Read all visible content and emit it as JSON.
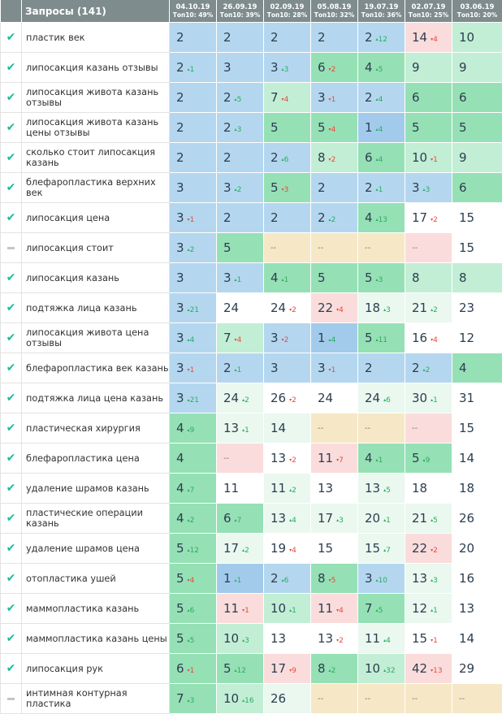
{
  "header": {
    "queries_label": "Запросы (141)",
    "dates": [
      {
        "date": "04.10.19",
        "top": "Топ10: 49%"
      },
      {
        "date": "26.09.19",
        "top": "Топ10: 39%"
      },
      {
        "date": "02.09.19",
        "top": "Топ10: 28%"
      },
      {
        "date": "05.08.19",
        "top": "Топ10: 32%"
      },
      {
        "date": "19.07.19",
        "top": "Топ10: 36%"
      },
      {
        "date": "02.07.19",
        "top": "Топ10: 25%"
      },
      {
        "date": "03.06.19",
        "top": "Топ10: 20%"
      }
    ]
  },
  "colors": {
    "blue": "#b4d7ef",
    "blue2": "#a2cbeb",
    "green": "#96e0b5",
    "lightgreen": "#c2eed5",
    "palegreen": "#eaf8ef",
    "white": "#ffffff",
    "pink": "#fbdcdc",
    "beige": "#f6e8c6",
    "up": "#27ae60",
    "down": "#e74c3c",
    "check": "#1abc9c"
  },
  "rows": [
    {
      "status": "check",
      "keyword": "пластик век",
      "cells": [
        [
          "2",
          0,
          "blue"
        ],
        [
          "2",
          0,
          "blue"
        ],
        [
          "2",
          0,
          "blue"
        ],
        [
          "2",
          0,
          "blue"
        ],
        [
          "2",
          12,
          "blue"
        ],
        [
          "14",
          -4,
          "pink"
        ],
        [
          "10",
          0,
          "lightgreen"
        ]
      ]
    },
    {
      "status": "check",
      "keyword": "липосакция казань отзывы",
      "cells": [
        [
          "2",
          1,
          "blue"
        ],
        [
          "3",
          0,
          "blue"
        ],
        [
          "3",
          3,
          "blue"
        ],
        [
          "6",
          -2,
          "green"
        ],
        [
          "4",
          5,
          "green"
        ],
        [
          "9",
          0,
          "lightgreen"
        ],
        [
          "9",
          0,
          "lightgreen"
        ]
      ]
    },
    {
      "status": "check",
      "keyword": "липосакция живота казань отзывы",
      "cells": [
        [
          "2",
          0,
          "blue"
        ],
        [
          "2",
          5,
          "blue"
        ],
        [
          "7",
          -4,
          "lightgreen"
        ],
        [
          "3",
          -1,
          "blue"
        ],
        [
          "2",
          4,
          "blue"
        ],
        [
          "6",
          0,
          "green"
        ],
        [
          "6",
          0,
          "green"
        ]
      ]
    },
    {
      "status": "check",
      "keyword": "липосакция живота казань цены отзывы",
      "cells": [
        [
          "2",
          0,
          "blue"
        ],
        [
          "2",
          3,
          "blue"
        ],
        [
          "5",
          0,
          "green"
        ],
        [
          "5",
          -4,
          "green"
        ],
        [
          "1",
          4,
          "blue2"
        ],
        [
          "5",
          0,
          "green"
        ],
        [
          "5",
          0,
          "green"
        ]
      ]
    },
    {
      "status": "check",
      "keyword": "сколько стоит липосакция казань",
      "cells": [
        [
          "2",
          0,
          "blue"
        ],
        [
          "2",
          0,
          "blue"
        ],
        [
          "2",
          6,
          "blue"
        ],
        [
          "8",
          -2,
          "lightgreen"
        ],
        [
          "6",
          4,
          "green"
        ],
        [
          "10",
          -1,
          "lightgreen"
        ],
        [
          "9",
          0,
          "lightgreen"
        ]
      ]
    },
    {
      "status": "check",
      "keyword": "блефаропластика верхних век",
      "cells": [
        [
          "3",
          0,
          "blue"
        ],
        [
          "3",
          2,
          "blue"
        ],
        [
          "5",
          -3,
          "green"
        ],
        [
          "2",
          0,
          "blue"
        ],
        [
          "2",
          1,
          "blue"
        ],
        [
          "3",
          3,
          "blue"
        ],
        [
          "6",
          0,
          "green"
        ]
      ]
    },
    {
      "status": "check",
      "keyword": "липосакция цена",
      "cells": [
        [
          "3",
          -1,
          "blue"
        ],
        [
          "2",
          0,
          "blue"
        ],
        [
          "2",
          0,
          "blue"
        ],
        [
          "2",
          2,
          "blue"
        ],
        [
          "4",
          13,
          "green"
        ],
        [
          "17",
          -2,
          "white"
        ],
        [
          "15",
          0,
          "white"
        ]
      ]
    },
    {
      "status": "dash",
      "keyword": "липосакция стоит",
      "cells": [
        [
          "3",
          2,
          "blue"
        ],
        [
          "5",
          0,
          "green"
        ],
        [
          "--",
          0,
          "beige"
        ],
        [
          "--",
          0,
          "beige"
        ],
        [
          "--",
          0,
          "beige"
        ],
        [
          "--",
          0,
          "pink"
        ],
        [
          "15",
          0,
          "white"
        ]
      ]
    },
    {
      "status": "check",
      "keyword": "липосакция казань",
      "cells": [
        [
          "3",
          0,
          "blue"
        ],
        [
          "3",
          1,
          "blue"
        ],
        [
          "4",
          1,
          "green"
        ],
        [
          "5",
          0,
          "green"
        ],
        [
          "5",
          3,
          "green"
        ],
        [
          "8",
          0,
          "lightgreen"
        ],
        [
          "8",
          0,
          "lightgreen"
        ]
      ]
    },
    {
      "status": "check",
      "keyword": "подтяжка лица казань",
      "cells": [
        [
          "3",
          21,
          "blue"
        ],
        [
          "24",
          0,
          "white"
        ],
        [
          "24",
          -2,
          "white"
        ],
        [
          "22",
          -4,
          "pink"
        ],
        [
          "18",
          3,
          "palegreen"
        ],
        [
          "21",
          2,
          "palegreen"
        ],
        [
          "23",
          0,
          "white"
        ]
      ]
    },
    {
      "status": "check",
      "keyword": "липосакция живота цена отзывы",
      "cells": [
        [
          "3",
          4,
          "blue"
        ],
        [
          "7",
          -4,
          "lightgreen"
        ],
        [
          "3",
          -2,
          "blue"
        ],
        [
          "1",
          4,
          "blue2"
        ],
        [
          "5",
          11,
          "green"
        ],
        [
          "16",
          -4,
          "white"
        ],
        [
          "12",
          0,
          "white"
        ]
      ]
    },
    {
      "status": "check",
      "keyword": "блефаропластика век казань",
      "cells": [
        [
          "3",
          -1,
          "blue"
        ],
        [
          "2",
          1,
          "blue"
        ],
        [
          "3",
          0,
          "blue"
        ],
        [
          "3",
          -1,
          "blue"
        ],
        [
          "2",
          0,
          "blue"
        ],
        [
          "2",
          2,
          "blue"
        ],
        [
          "4",
          0,
          "green"
        ]
      ]
    },
    {
      "status": "check",
      "keyword": "подтяжка лица цена казань",
      "cells": [
        [
          "3",
          21,
          "blue"
        ],
        [
          "24",
          2,
          "palegreen"
        ],
        [
          "26",
          -2,
          "white"
        ],
        [
          "24",
          0,
          "white"
        ],
        [
          "24",
          6,
          "palegreen"
        ],
        [
          "30",
          1,
          "palegreen"
        ],
        [
          "31",
          0,
          "white"
        ]
      ]
    },
    {
      "status": "check",
      "keyword": "пластическая хирургия",
      "cells": [
        [
          "4",
          9,
          "green"
        ],
        [
          "13",
          1,
          "palegreen"
        ],
        [
          "14",
          0,
          "palegreen"
        ],
        [
          "--",
          0,
          "beige"
        ],
        [
          "--",
          0,
          "beige"
        ],
        [
          "--",
          0,
          "pink"
        ],
        [
          "15",
          0,
          "white"
        ]
      ]
    },
    {
      "status": "check",
      "keyword": "блефаропластика цена",
      "cells": [
        [
          "4",
          0,
          "green"
        ],
        [
          "--",
          0,
          "pink"
        ],
        [
          "13",
          -2,
          "white"
        ],
        [
          "11",
          -7,
          "pink"
        ],
        [
          "4",
          1,
          "green"
        ],
        [
          "5",
          9,
          "green"
        ],
        [
          "14",
          0,
          "white"
        ]
      ]
    },
    {
      "status": "check",
      "keyword": "удаление шрамов казань",
      "cells": [
        [
          "4",
          7,
          "green"
        ],
        [
          "11",
          0,
          "white"
        ],
        [
          "11",
          2,
          "palegreen"
        ],
        [
          "13",
          0,
          "white"
        ],
        [
          "13",
          5,
          "palegreen"
        ],
        [
          "18",
          0,
          "white"
        ],
        [
          "18",
          0,
          "white"
        ]
      ]
    },
    {
      "status": "check",
      "keyword": "пластические операции казань",
      "cells": [
        [
          "4",
          2,
          "green"
        ],
        [
          "6",
          7,
          "green"
        ],
        [
          "13",
          4,
          "palegreen"
        ],
        [
          "17",
          3,
          "palegreen"
        ],
        [
          "20",
          1,
          "palegreen"
        ],
        [
          "21",
          5,
          "palegreen"
        ],
        [
          "26",
          0,
          "white"
        ]
      ]
    },
    {
      "status": "check",
      "keyword": "удаление шрамов цена",
      "cells": [
        [
          "5",
          12,
          "green"
        ],
        [
          "17",
          2,
          "palegreen"
        ],
        [
          "19",
          -4,
          "white"
        ],
        [
          "15",
          0,
          "white"
        ],
        [
          "15",
          7,
          "palegreen"
        ],
        [
          "22",
          -2,
          "pink"
        ],
        [
          "20",
          0,
          "white"
        ]
      ]
    },
    {
      "status": "check",
      "keyword": "отопластика ушей",
      "cells": [
        [
          "5",
          -4,
          "green"
        ],
        [
          "1",
          1,
          "blue2"
        ],
        [
          "2",
          6,
          "blue"
        ],
        [
          "8",
          -5,
          "green"
        ],
        [
          "3",
          10,
          "blue"
        ],
        [
          "13",
          3,
          "palegreen"
        ],
        [
          "16",
          0,
          "white"
        ]
      ]
    },
    {
      "status": "check",
      "keyword": "маммопластика казань",
      "cells": [
        [
          "5",
          6,
          "green"
        ],
        [
          "11",
          -1,
          "pink"
        ],
        [
          "10",
          1,
          "lightgreen"
        ],
        [
          "11",
          -4,
          "pink"
        ],
        [
          "7",
          5,
          "green"
        ],
        [
          "12",
          1,
          "palegreen"
        ],
        [
          "13",
          0,
          "white"
        ]
      ]
    },
    {
      "status": "check",
      "keyword": "маммопластика казань цены",
      "cells": [
        [
          "5",
          5,
          "green"
        ],
        [
          "10",
          3,
          "lightgreen"
        ],
        [
          "13",
          0,
          "white"
        ],
        [
          "13",
          -2,
          "white"
        ],
        [
          "11",
          4,
          "palegreen"
        ],
        [
          "15",
          -1,
          "white"
        ],
        [
          "14",
          0,
          "white"
        ]
      ]
    },
    {
      "status": "check",
      "keyword": "липосакция рук",
      "cells": [
        [
          "6",
          -1,
          "green"
        ],
        [
          "5",
          12,
          "green"
        ],
        [
          "17",
          -9,
          "pink"
        ],
        [
          "8",
          2,
          "green"
        ],
        [
          "10",
          32,
          "lightgreen"
        ],
        [
          "42",
          -13,
          "pink"
        ],
        [
          "29",
          0,
          "white"
        ]
      ]
    },
    {
      "status": "dash",
      "keyword": "интимная контурная пластика",
      "cells": [
        [
          "7",
          3,
          "green"
        ],
        [
          "10",
          16,
          "lightgreen"
        ],
        [
          "26",
          0,
          "palegreen"
        ],
        [
          "--",
          0,
          "beige"
        ],
        [
          "--",
          0,
          "beige"
        ],
        [
          "--",
          0,
          "beige"
        ],
        [
          "--",
          0,
          "beige"
        ]
      ]
    }
  ]
}
